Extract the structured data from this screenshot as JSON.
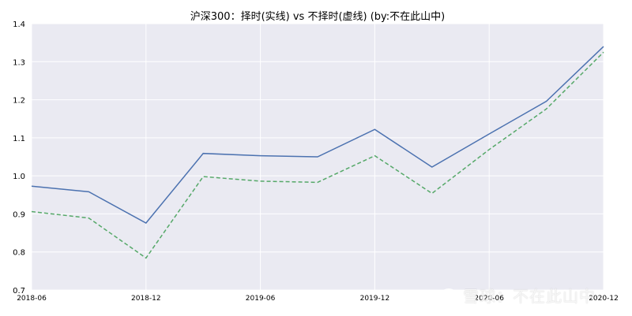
{
  "chart_data": {
    "type": "line",
    "title": "沪深300：择时(实线)  vs  不择时(虚线)  (by:不在此山中)",
    "xlabel": "",
    "ylabel": "",
    "x": [
      "2018-06",
      "2018-09",
      "2018-12",
      "2019-03",
      "2019-06",
      "2019-09",
      "2019-12",
      "2020-03",
      "2020-06",
      "2020-09",
      "2020-12"
    ],
    "x_ticks": [
      "2018-06",
      "2018-12",
      "2019-06",
      "2019-12",
      "2020-06",
      "2020-12"
    ],
    "ylim": [
      0.7,
      1.4
    ],
    "y_ticks": [
      "0.7",
      "0.8",
      "0.9",
      "1.0",
      "1.1",
      "1.2",
      "1.3",
      "1.4"
    ],
    "grid": true,
    "legend": "none",
    "series": [
      {
        "style": "solid",
        "color": "#4c72b0",
        "values": [
          0.973,
          0.958,
          0.876,
          1.059,
          1.053,
          1.05,
          1.122,
          1.023,
          1.11,
          1.196,
          1.34
        ]
      },
      {
        "style": "dashed",
        "color": "#55a868",
        "values": [
          0.906,
          0.889,
          0.784,
          0.998,
          0.986,
          0.983,
          1.053,
          0.954,
          1.069,
          1.176,
          1.325
        ]
      }
    ]
  },
  "watermark": {
    "text": "雪球：不在此山中"
  },
  "colors": {
    "background": "#eaeaf2",
    "grid": "#ffffff"
  }
}
